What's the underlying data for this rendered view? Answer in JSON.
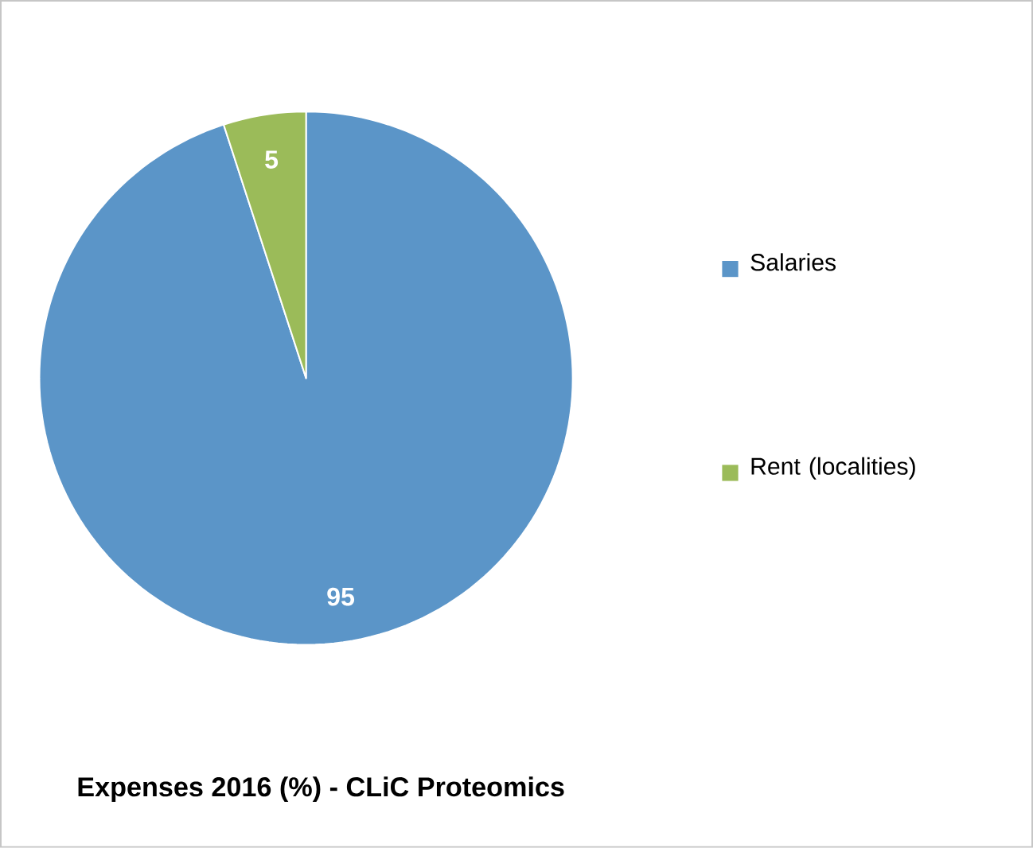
{
  "chart_data": {
    "type": "pie",
    "title": "Expenses 2016 (%) - CLiC Proteomics",
    "categories": [
      "Salaries",
      "Rent (localities)"
    ],
    "values": [
      95,
      5
    ],
    "colors": [
      "#5b95c8",
      "#9bbb59"
    ],
    "data_labels": true,
    "legend": "right"
  }
}
